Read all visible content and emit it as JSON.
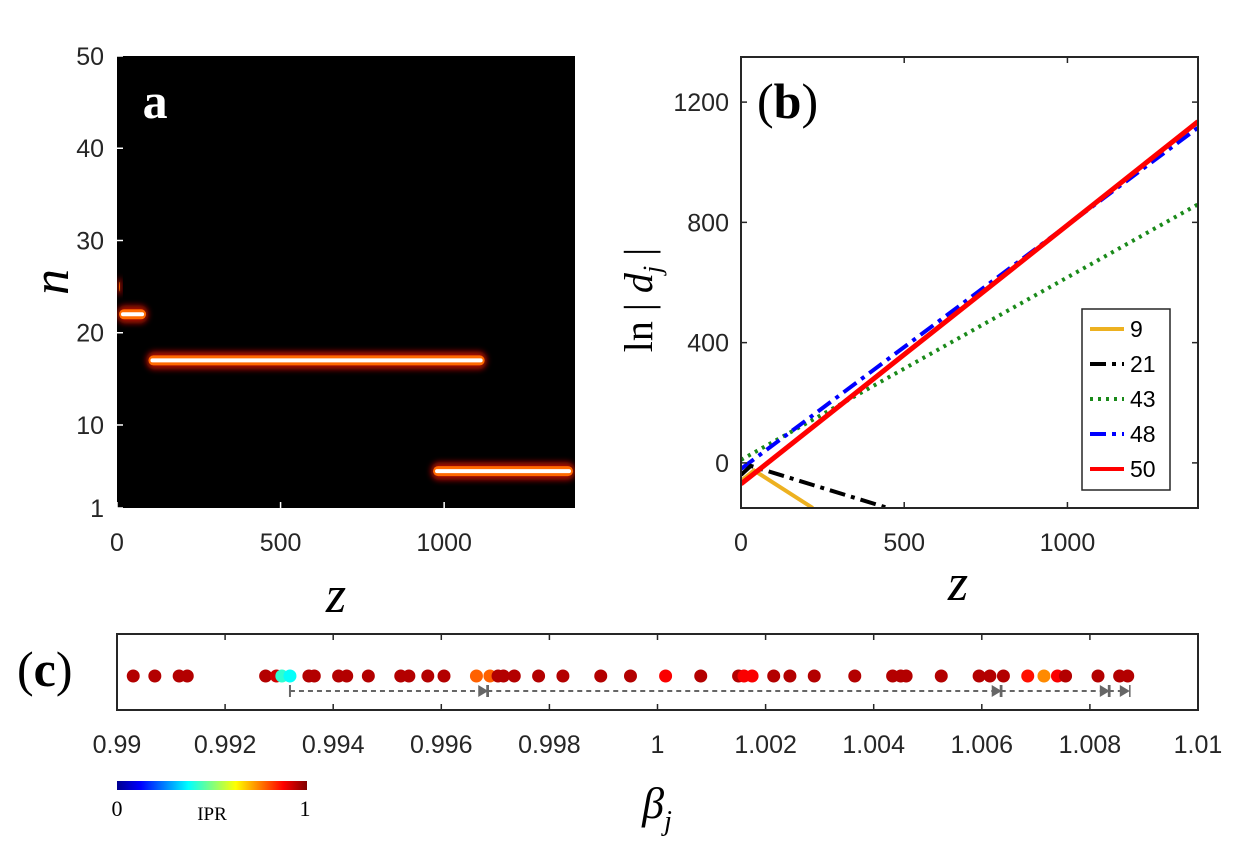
{
  "chart_data": [
    {
      "panel": "(a)",
      "type": "heatmap",
      "panel_label": "a",
      "xlabel": "z",
      "ylabel": "n",
      "xlim": [
        0,
        1400
      ],
      "ylim": [
        1,
        50
      ],
      "xticks": [
        0,
        500,
        1000
      ],
      "yticks": [
        1,
        10,
        20,
        30,
        40,
        50
      ],
      "colormap": [
        "#000000",
        "#aa1000",
        "#ff6a00",
        "#ffffff"
      ],
      "segments": [
        {
          "z_start": 0,
          "z_end": 15,
          "n": 25
        },
        {
          "z_start": 0,
          "z_end": 95,
          "n": 22
        },
        {
          "z_start": 90,
          "z_end": 1130,
          "n": 17
        },
        {
          "z_start": 960,
          "z_end": 1400,
          "n": 5
        }
      ]
    },
    {
      "panel": "(b)",
      "type": "line",
      "panel_label": "b",
      "xlabel": "z",
      "ylabel_main": "ln",
      "ylabel_var": "d",
      "ylabel_sub": "j",
      "xlim": [
        0,
        1400
      ],
      "ylim": [
        -150,
        1350
      ],
      "xticks": [
        0,
        500,
        1000
      ],
      "yticks": [
        0,
        400,
        800,
        1200
      ],
      "legend_position": "lower-right",
      "series": [
        {
          "name": "9",
          "color": "#EDB120",
          "dash": "solid",
          "x": [
            0,
            40,
            220
          ],
          "y": [
            -60,
            -25,
            -150
          ]
        },
        {
          "name": "21",
          "color": "#000000",
          "dash": "dashdot",
          "x": [
            0,
            30,
            450
          ],
          "y": [
            -40,
            -10,
            -150
          ]
        },
        {
          "name": "43",
          "color": "#1a8a1a",
          "dash": "dotted",
          "x": [
            0,
            1400
          ],
          "y": [
            10,
            860
          ]
        },
        {
          "name": "48",
          "color": "#0000ff",
          "dash": "dashdot",
          "x": [
            0,
            1400
          ],
          "y": [
            -20,
            1115
          ]
        },
        {
          "name": "50",
          "color": "#ff0000",
          "dash": "solid",
          "x": [
            0,
            1400
          ],
          "y": [
            -70,
            1135
          ]
        }
      ]
    },
    {
      "panel": "(c)",
      "type": "scatter",
      "panel_label": "c",
      "xlabel_var": "β",
      "xlabel_sub": "j",
      "xlim": [
        0.99,
        1.01
      ],
      "xticks": [
        "0.99",
        "0.992",
        "0.994",
        "0.996",
        "0.998",
        "1",
        "1.002",
        "1.004",
        "1.006",
        "1.008",
        "1.01"
      ],
      "colorbar": {
        "label": "IPR",
        "min": "0",
        "max": "1"
      },
      "points": [
        {
          "beta": 0.9903,
          "ipr": 0.95
        },
        {
          "beta": 0.9907,
          "ipr": 0.95
        },
        {
          "beta": 0.99115,
          "ipr": 0.95
        },
        {
          "beta": 0.9913,
          "ipr": 0.95
        },
        {
          "beta": 0.99275,
          "ipr": 0.95
        },
        {
          "beta": 0.99295,
          "ipr": 0.92
        },
        {
          "beta": 0.99305,
          "ipr": 0.42
        },
        {
          "beta": 0.9932,
          "ipr": 0.38
        },
        {
          "beta": 0.99355,
          "ipr": 0.95
        },
        {
          "beta": 0.99365,
          "ipr": 0.95
        },
        {
          "beta": 0.9941,
          "ipr": 0.95
        },
        {
          "beta": 0.99425,
          "ipr": 0.95
        },
        {
          "beta": 0.99465,
          "ipr": 0.95
        },
        {
          "beta": 0.99525,
          "ipr": 0.95
        },
        {
          "beta": 0.9954,
          "ipr": 0.95
        },
        {
          "beta": 0.99575,
          "ipr": 0.95
        },
        {
          "beta": 0.99605,
          "ipr": 0.95
        },
        {
          "beta": 0.99665,
          "ipr": 0.78
        },
        {
          "beta": 0.9969,
          "ipr": 0.78
        },
        {
          "beta": 0.99705,
          "ipr": 0.95
        },
        {
          "beta": 0.99715,
          "ipr": 0.95
        },
        {
          "beta": 0.99735,
          "ipr": 0.95
        },
        {
          "beta": 0.9978,
          "ipr": 0.95
        },
        {
          "beta": 0.99825,
          "ipr": 0.95
        },
        {
          "beta": 0.99895,
          "ipr": 0.95
        },
        {
          "beta": 0.9995,
          "ipr": 0.95
        },
        {
          "beta": 1.00015,
          "ipr": 0.88
        },
        {
          "beta": 1.0008,
          "ipr": 0.95
        },
        {
          "beta": 1.0015,
          "ipr": 0.95
        },
        {
          "beta": 1.0016,
          "ipr": 0.88
        },
        {
          "beta": 1.00175,
          "ipr": 0.88
        },
        {
          "beta": 1.00215,
          "ipr": 0.95
        },
        {
          "beta": 1.00245,
          "ipr": 0.95
        },
        {
          "beta": 1.0029,
          "ipr": 0.95
        },
        {
          "beta": 1.00365,
          "ipr": 0.95
        },
        {
          "beta": 1.00435,
          "ipr": 0.95
        },
        {
          "beta": 1.0045,
          "ipr": 0.95
        },
        {
          "beta": 1.0046,
          "ipr": 0.95
        },
        {
          "beta": 1.00525,
          "ipr": 0.95
        },
        {
          "beta": 1.00595,
          "ipr": 0.95
        },
        {
          "beta": 1.00615,
          "ipr": 0.95
        },
        {
          "beta": 1.0064,
          "ipr": 0.95
        },
        {
          "beta": 1.00685,
          "ipr": 0.86
        },
        {
          "beta": 1.00715,
          "ipr": 0.74
        },
        {
          "beta": 1.0074,
          "ipr": 0.88
        },
        {
          "beta": 1.00755,
          "ipr": 0.95
        },
        {
          "beta": 1.00815,
          "ipr": 0.95
        },
        {
          "beta": 1.00855,
          "ipr": 0.95
        },
        {
          "beta": 1.0087,
          "ipr": 0.95
        }
      ],
      "arrows": [
        {
          "from": 0.9932,
          "to": 0.99685
        },
        {
          "from": 0.99685,
          "to": 1.00635
        },
        {
          "from": 1.00635,
          "to": 1.00835
        },
        {
          "from": 1.00835,
          "to": 1.00872
        }
      ]
    }
  ]
}
